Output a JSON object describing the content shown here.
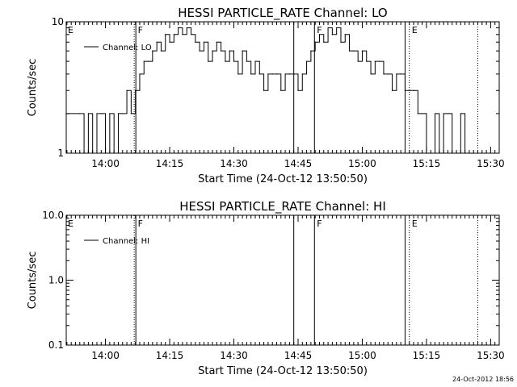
{
  "footer_stamp": "24-Oct-2012 18:56",
  "chart_data": [
    {
      "type": "line",
      "title": "HESSI PARTICLE_RATE Channel: LO",
      "xlabel": "Start Time (24-Oct-12 13:50:50)",
      "ylabel": "Counts/sec",
      "y_scale": "log",
      "ylim": [
        1,
        10
      ],
      "y_ticks": [
        {
          "v": 1,
          "label": "1"
        },
        {
          "v": 10,
          "label": "10"
        }
      ],
      "xlim": [
        "13:50:50",
        "15:32:00"
      ],
      "x_ticks": [
        "14:00",
        "14:15",
        "14:30",
        "14:45",
        "15:00",
        "15:15",
        "15:30"
      ],
      "legend": {
        "position": "top-left",
        "entries": [
          "Channel: LO"
        ]
      },
      "flags": [
        {
          "label": "E",
          "time": "13:50:50",
          "style": "none"
        },
        {
          "label": "F",
          "time": "14:07:00",
          "style": "dotted-solid"
        },
        {
          "label": "",
          "time": "14:44:00",
          "style": "solid"
        },
        {
          "label": "F",
          "time": "14:48:50",
          "style": "solid"
        },
        {
          "label": "",
          "time": "15:10:00",
          "style": "solid"
        },
        {
          "label": "E",
          "time": "15:11:00",
          "style": "dotted"
        },
        {
          "label": "",
          "time": "15:27:00",
          "style": "dotted"
        }
      ],
      "series": [
        {
          "name": "Channel: LO",
          "x": [
            "13:51:00",
            "13:54:00",
            "13:55:00",
            "13:56:00",
            "13:57:00",
            "13:58:00",
            "13:59:00",
            "14:00:00",
            "14:01:00",
            "14:02:00",
            "14:03:00",
            "14:04:00",
            "14:05:00",
            "14:06:00",
            "14:07:00",
            "14:08:00",
            "14:09:00",
            "14:10:00",
            "14:11:00",
            "14:12:00",
            "14:13:00",
            "14:14:00",
            "14:15:00",
            "14:16:00",
            "14:17:00",
            "14:18:00",
            "14:19:00",
            "14:20:00",
            "14:21:00",
            "14:22:00",
            "14:23:00",
            "14:24:00",
            "14:25:00",
            "14:26:00",
            "14:27:00",
            "14:28:00",
            "14:29:00",
            "14:30:00",
            "14:31:00",
            "14:32:00",
            "14:33:00",
            "14:34:00",
            "14:35:00",
            "14:36:00",
            "14:37:00",
            "14:38:00",
            "14:39:00",
            "14:40:00",
            "14:41:00",
            "14:42:00",
            "14:43:00",
            "14:44:00",
            "14:45:00",
            "14:46:00",
            "14:47:00",
            "14:48:00",
            "14:49:00",
            "14:50:00",
            "14:51:00",
            "14:52:00",
            "14:53:00",
            "14:54:00",
            "14:55:00",
            "14:56:00",
            "14:57:00",
            "14:58:00",
            "14:59:00",
            "15:00:00",
            "15:01:00",
            "15:02:00",
            "15:03:00",
            "15:04:00",
            "15:05:00",
            "15:06:00",
            "15:07:00",
            "15:08:00",
            "15:09:00",
            "15:10:00",
            "15:11:00",
            "15:12:00",
            "15:13:00",
            "15:14:00",
            "15:15:00",
            "15:16:00",
            "15:17:00",
            "15:18:00",
            "15:19:00",
            "15:20:00",
            "15:21:00",
            "15:22:00",
            "15:23:00",
            "15:24:00",
            "15:25:00",
            "15:26:00",
            "15:27:00"
          ],
          "y": [
            2,
            2,
            1,
            2,
            1,
            2,
            2,
            1,
            2,
            1,
            2,
            2,
            3,
            2,
            3,
            4,
            5,
            5,
            6,
            7,
            6,
            8,
            7,
            8,
            9,
            8,
            9,
            8,
            7,
            6,
            7,
            5,
            6,
            7,
            6,
            5,
            6,
            5,
            4,
            6,
            5,
            4,
            5,
            4,
            3,
            4,
            4,
            4,
            3,
            4,
            4,
            4,
            3,
            4,
            5,
            6,
            7,
            8,
            7,
            9,
            8,
            9,
            7,
            8,
            6,
            6,
            5,
            6,
            5,
            4,
            5,
            5,
            4,
            4,
            3,
            4,
            4,
            3,
            3,
            3,
            2,
            2,
            1,
            1,
            2,
            1,
            2,
            2,
            1,
            1,
            2,
            1,
            1,
            1,
            1
          ]
        }
      ]
    },
    {
      "type": "line",
      "title": "HESSI PARTICLE_RATE Channel: HI",
      "xlabel": "Start Time (24-Oct-12 13:50:50)",
      "ylabel": "Counts/sec",
      "y_scale": "log",
      "ylim": [
        0.1,
        10
      ],
      "y_ticks": [
        {
          "v": 0.1,
          "label": "0.1"
        },
        {
          "v": 1,
          "label": "1.0"
        },
        {
          "v": 10,
          "label": "10.0"
        }
      ],
      "xlim": [
        "13:50:50",
        "15:32:00"
      ],
      "x_ticks": [
        "14:00",
        "14:15",
        "14:30",
        "14:45",
        "15:00",
        "15:15",
        "15:30"
      ],
      "legend": {
        "position": "top-left",
        "entries": [
          "Channel: HI"
        ]
      },
      "flags": [
        {
          "label": "E",
          "time": "13:50:50",
          "style": "none"
        },
        {
          "label": "F",
          "time": "14:07:00",
          "style": "dotted-solid"
        },
        {
          "label": "",
          "time": "14:44:00",
          "style": "solid"
        },
        {
          "label": "F",
          "time": "14:48:50",
          "style": "solid"
        },
        {
          "label": "",
          "time": "15:10:00",
          "style": "solid"
        },
        {
          "label": "E",
          "time": "15:11:00",
          "style": "dotted"
        },
        {
          "label": "",
          "time": "15:27:00",
          "style": "dotted"
        }
      ],
      "series": [
        {
          "name": "Channel: HI",
          "x": [],
          "y": []
        }
      ]
    }
  ]
}
